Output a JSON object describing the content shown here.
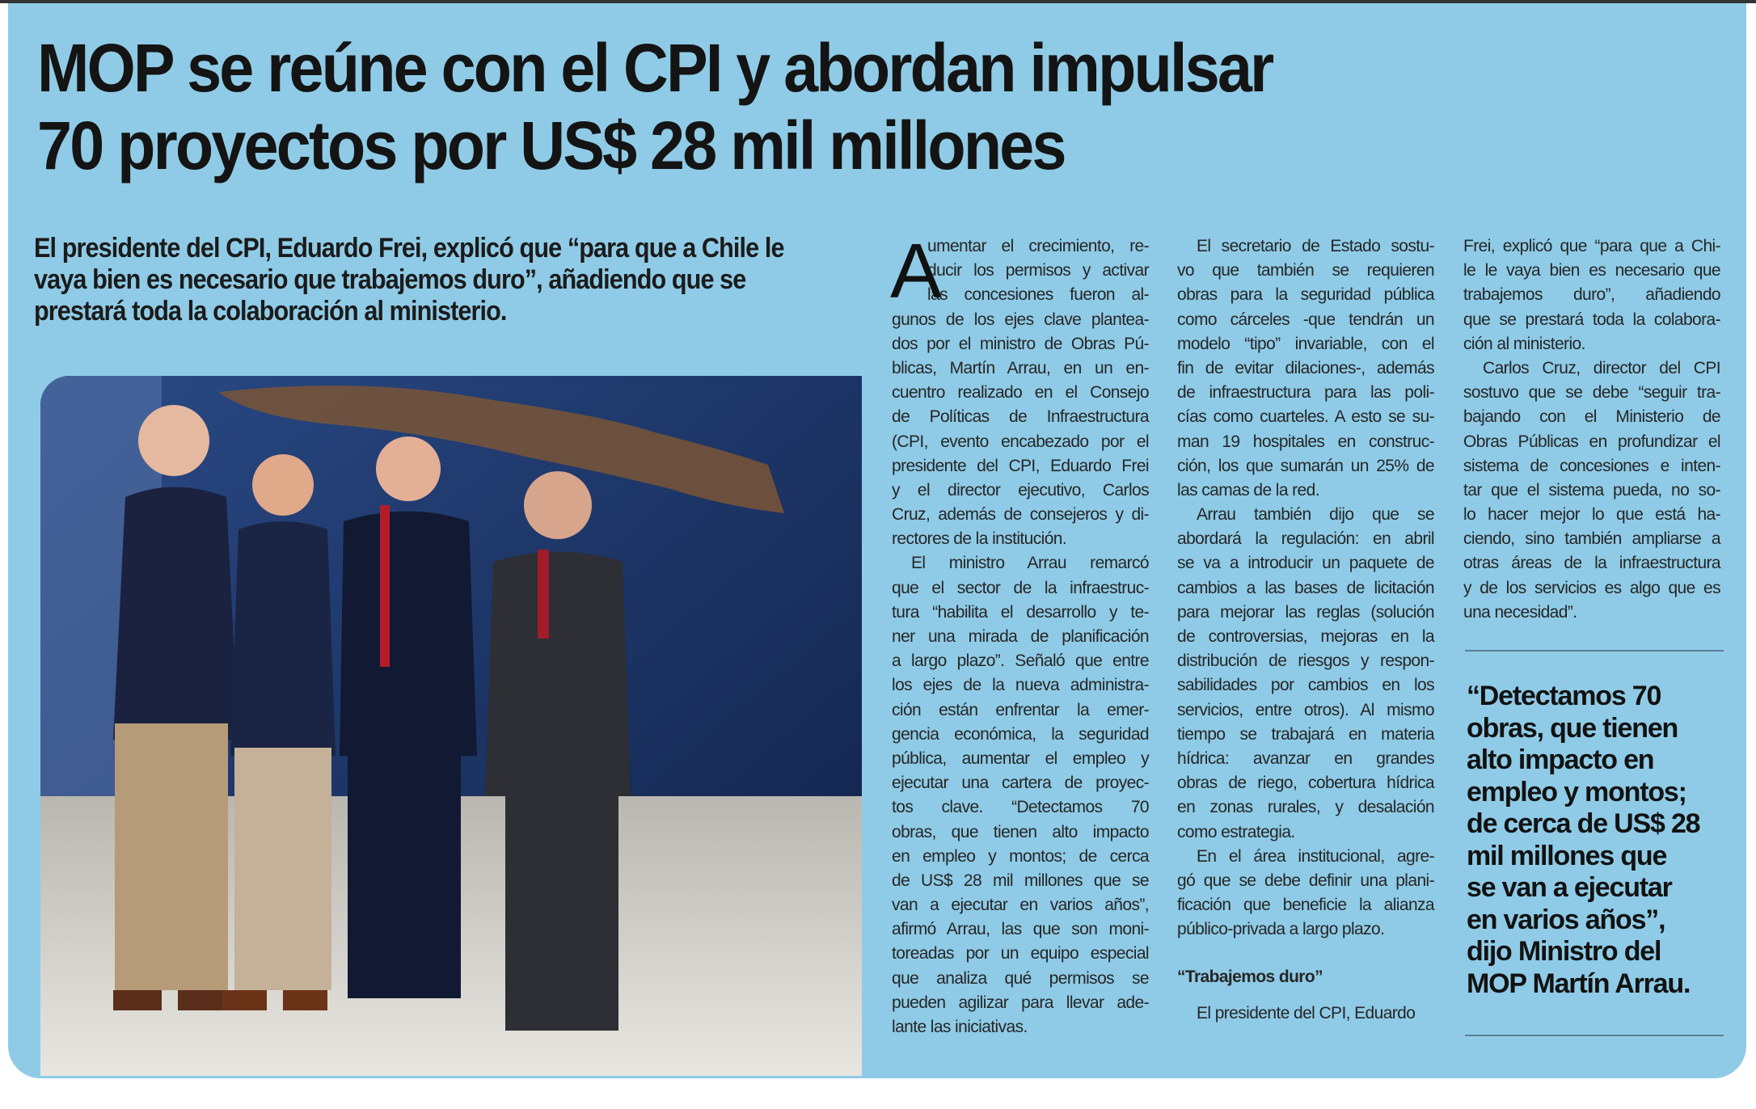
{
  "headline": {
    "lines": [
      "MOP se reúne con el CPI y abordan impulsar",
      "70 proyectos por US$ 28 mil millones"
    ]
  },
  "deck": "El presidente del CPI, Eduardo Frei, explicó que “para que a Chile le vaya bien es necesario que trabajemos duro”, añadiendo que se prestará toda la colaboración al ministerio.",
  "colors": {
    "background": "#8fcbe6",
    "text": "#141414"
  },
  "photo": {
    "description_icon": "group-photo"
  },
  "columns": [
    {
      "dropcap": "A",
      "paragraphs": [
        {
          "lines": [
            "umentar el crecimiento, re-",
            "ducir los permisos y activar",
            "las concesiones fueron al-",
            "gunos de los ejes clave plantea-",
            "dos por el ministro de Obras Pú-",
            "blicas, Martín Arrau, en un en-",
            "cuentro realizado en el Consejo",
            "de Políticas de Infraestructura",
            "(CPI, evento encabezado por el",
            "presidente del CPI, Eduardo Frei",
            "y el director ejecutivo, Carlos",
            "Cruz, además de consejeros y di-",
            "rectores de la institución."
          ]
        },
        {
          "indent": true,
          "lines": [
            "El ministro Arrau remarcó",
            "que el sector de la infraestruc-",
            "tura “habilita el desarrollo y te-",
            "ner una mirada de planificación",
            "a largo plazo”. Señaló que entre",
            "los ejes de la nueva administra-",
            "ción están enfrentar la emer-",
            "gencia económica, la seguridad",
            "pública, aumentar el empleo y",
            "ejecutar una cartera de proyec-",
            "tos clave. “Detectamos 70",
            "obras, que tienen alto impacto",
            "en empleo y montos; de cerca",
            "de US$ 28 mil millones que se",
            "van a ejecutar en varios años”,",
            "afirmó Arrau, las que son moni-",
            "toreadas por un equipo especial",
            "que analiza qué permisos se",
            "pueden agilizar para llevar ade-",
            "lante las iniciativas."
          ]
        }
      ]
    },
    {
      "paragraphs": [
        {
          "indent": true,
          "lines": [
            "El secretario de Estado sostu-",
            "vo que también se requieren",
            "obras para la seguridad pública",
            "como cárceles -que tendrán un",
            "modelo “tipo” invariable, con el",
            "fin de evitar dilaciones-, además",
            "de infraestructura para las poli-",
            "cías como cuarteles. A esto se su-",
            "man 19 hospitales en construc-",
            "ción, los que sumarán un 25% de",
            "las camas de la red."
          ]
        },
        {
          "indent": true,
          "lines": [
            "Arrau también dijo que se",
            "abordará la regulación: en abril",
            "se va a introducir un paquete de",
            "cambios a las bases de licitación",
            "para mejorar las reglas (solución",
            "de controversias, mejoras en la",
            "distribución de riesgos y respon-",
            "sabilidades por cambios en los",
            "servicios, entre otros). Al mismo",
            "tiempo se trabajará en materia",
            "hídrica: avanzar en grandes",
            "obras de riego, cobertura hídrica",
            "en zonas rurales, y desalación",
            "como estrategia."
          ]
        },
        {
          "indent": true,
          "lines": [
            "En el área institucional, agre-",
            "gó que se debe definir una plani-",
            "ficación que beneficie la alianza",
            "público-privada a largo plazo."
          ]
        },
        {
          "subhead": "“Trabajemos duro”"
        },
        {
          "indent": true,
          "lines": [
            "El presidente del CPI, Eduardo"
          ]
        }
      ]
    },
    {
      "paragraphs": [
        {
          "lines": [
            "Frei, explicó que “para que a Chi-",
            "le le vaya bien es necesario que",
            "trabajemos duro”, añadiendo",
            "que se prestará toda la colabora-",
            "ción al ministerio."
          ]
        },
        {
          "indent": true,
          "lines": [
            "Carlos Cruz, director del CPI",
            "sostuvo que se debe “seguir tra-",
            "bajando con el Ministerio de",
            "Obras Públicas en profundizar el",
            "sistema de concesiones e inten-",
            "tar que el sistema pueda, no so-",
            "lo hacer mejor lo que está ha-",
            "ciendo, sino también ampliarse a",
            "otras áreas de la infraestructura",
            "y de los servicios es algo que es",
            "una necesidad”."
          ]
        }
      ]
    }
  ],
  "pull_quote": {
    "lines": [
      "“Detectamos 70",
      "obras, que tienen",
      "alto impacto en",
      "empleo y montos;",
      "de cerca de US$ 28",
      "mil millones que",
      "se van a ejecutar",
      "en varios años”,",
      "dijo Ministro del",
      "MOP Martín Arrau."
    ]
  }
}
